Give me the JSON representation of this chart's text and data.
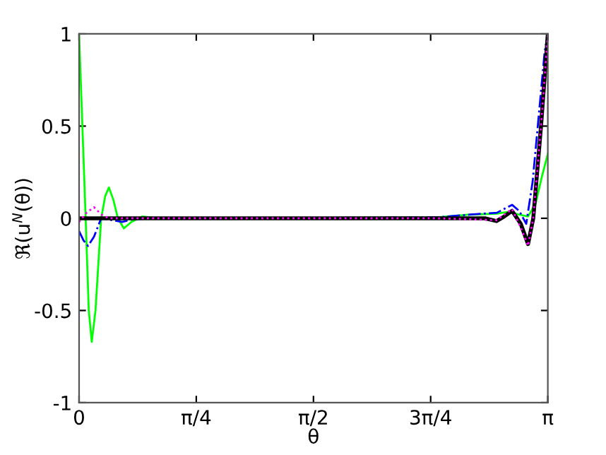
{
  "chart_data": {
    "type": "line",
    "xlabel": "θ",
    "ylabel": "ℜ(u$^{N}$(θ))",
    "xlim": [
      0,
      3.14159
    ],
    "ylim": [
      -1,
      1
    ],
    "xticks": [
      0,
      {
        "value": 0.7854,
        "label": "π/4"
      },
      {
        "value": 1.5708,
        "label": "π/2"
      },
      {
        "value": 2.3562,
        "label": "3π/4"
      },
      {
        "value": 3.14159,
        "label": "π"
      }
    ],
    "yticks": [
      -1,
      -0.5,
      0,
      0.5,
      1
    ],
    "grid": false,
    "legend": false,
    "series": [
      {
        "color": "#00ff00",
        "line_style": "solid",
        "x": [
          0,
          0.02,
          0.044,
          0.065,
          0.085,
          0.11,
          0.148,
          0.175,
          0.2,
          0.23,
          0.26,
          0.3,
          0.35,
          0.425,
          0.5,
          1.0,
          2.4,
          2.62,
          2.8,
          2.877,
          2.95,
          3.009,
          3.06,
          3.1,
          3.14159
        ],
        "values": [
          1,
          0.55,
          0,
          -0.5,
          -0.67,
          -0.5,
          0,
          0.12,
          0.167,
          0.1,
          0.0,
          -0.055,
          -0.02,
          0.01,
          0,
          0,
          0.005,
          0.02,
          0.025,
          0.035,
          0.02,
          0.01,
          0.08,
          0.22,
          0.35
        ]
      },
      {
        "color": "#0000ff",
        "line_style": "dashdot",
        "x": [
          0,
          0.03,
          0.06,
          0.1,
          0.148,
          0.22,
          0.29,
          0.36,
          0.5,
          1.0,
          2.4,
          2.624,
          2.8,
          2.902,
          2.95,
          2.997,
          3.04,
          3.08,
          3.12,
          3.14159
        ],
        "values": [
          -0.07,
          -0.12,
          -0.15,
          -0.1,
          0,
          -0.01,
          -0.02,
          -0.005,
          0,
          0,
          0.005,
          0.02,
          0.03,
          0.073,
          0.04,
          -0.03,
          0.2,
          0.55,
          0.9,
          1
        ]
      },
      {
        "color": "#000000",
        "line_style": "solid",
        "x": [
          0,
          0.5,
          1.0,
          2.4,
          2.72,
          2.798,
          2.85,
          2.902,
          2.96,
          3.009,
          3.044,
          3.096,
          3.14159
        ],
        "values": [
          0,
          0,
          0,
          0,
          0,
          -0.015,
          0.01,
          0.04,
          -0.03,
          -0.14,
          0,
          0.5,
          1
        ]
      },
      {
        "color": "#ff00ff",
        "line_style": "dotted",
        "x": [
          0,
          0.05,
          0.1,
          0.15,
          0.2,
          0.3,
          0.5,
          1.0,
          2.4,
          2.798,
          2.902,
          2.96,
          3.009,
          3.044,
          3.096,
          3.14159
        ],
        "values": [
          -0.02,
          0.03,
          0.06,
          0.02,
          0,
          0,
          0,
          0,
          0,
          -0.01,
          0.05,
          -0.05,
          -0.15,
          0,
          0.5,
          1
        ]
      }
    ]
  }
}
